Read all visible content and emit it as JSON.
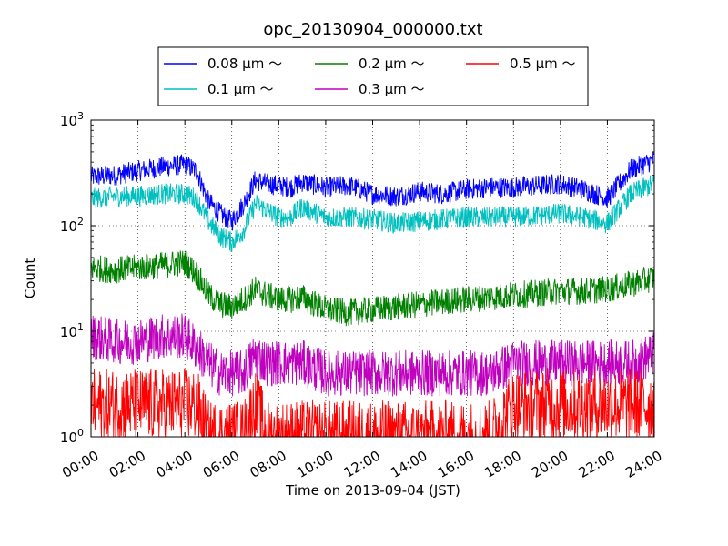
{
  "chart_data": {
    "type": "line",
    "title": "opc_20130904_000000.txt",
    "xlabel": "Time on 2013-09-04 (JST)",
    "ylabel": "Count",
    "yscale": "log",
    "xlim": [
      "00:00",
      "24:00"
    ],
    "ylim": [
      1,
      1000
    ],
    "grid": true,
    "legend_position": "top",
    "x_ticks": [
      "00:00",
      "02:00",
      "04:00",
      "06:00",
      "08:00",
      "10:00",
      "12:00",
      "14:00",
      "16:00",
      "18:00",
      "20:00",
      "22:00",
      "24:00"
    ],
    "y_ticks": [
      {
        "value": 1,
        "base": "10",
        "exp": "0"
      },
      {
        "value": 10,
        "base": "10",
        "exp": "1"
      },
      {
        "value": 100,
        "base": "10",
        "exp": "2"
      },
      {
        "value": 1000,
        "base": "10",
        "exp": "3"
      }
    ],
    "series": [
      {
        "name": "0.08 μm ～",
        "color": "#0000ff",
        "x": [
          "00:00",
          "01:00",
          "02:00",
          "03:00",
          "04:00",
          "04:30",
          "05:00",
          "05:30",
          "06:00",
          "06:30",
          "07:00",
          "07:30",
          "08:00",
          "08:30",
          "09:00",
          "10:00",
          "11:00",
          "12:00",
          "13:00",
          "14:00",
          "15:00",
          "16:00",
          "17:00",
          "18:00",
          "19:00",
          "20:00",
          "21:00",
          "22:00",
          "23:00",
          "24:00"
        ],
        "values": [
          290,
          300,
          330,
          360,
          380,
          330,
          170,
          130,
          110,
          160,
          270,
          250,
          240,
          230,
          260,
          230,
          240,
          200,
          190,
          210,
          200,
          220,
          230,
          230,
          240,
          250,
          220,
          180,
          340,
          420
        ]
      },
      {
        "name": "0.1 μm ～",
        "color": "#00bfbf",
        "x": [
          "00:00",
          "01:00",
          "02:00",
          "03:00",
          "04:00",
          "04:30",
          "05:00",
          "05:30",
          "06:00",
          "06:30",
          "07:00",
          "07:30",
          "08:00",
          "08:30",
          "09:00",
          "10:00",
          "11:00",
          "12:00",
          "13:00",
          "14:00",
          "15:00",
          "16:00",
          "17:00",
          "18:00",
          "19:00",
          "20:00",
          "21:00",
          "22:00",
          "23:00",
          "24:00"
        ],
        "values": [
          180,
          190,
          190,
          200,
          200,
          180,
          110,
          80,
          70,
          90,
          160,
          140,
          120,
          120,
          150,
          120,
          120,
          115,
          105,
          110,
          115,
          120,
          120,
          120,
          125,
          130,
          120,
          105,
          200,
          250
        ]
      },
      {
        "name": "0.2 μm ～",
        "color": "#008000",
        "x": [
          "00:00",
          "01:00",
          "02:00",
          "03:00",
          "04:00",
          "04:30",
          "05:00",
          "05:30",
          "06:00",
          "06:30",
          "07:00",
          "07:30",
          "08:00",
          "08:30",
          "09:00",
          "10:00",
          "11:00",
          "12:00",
          "13:00",
          "14:00",
          "15:00",
          "16:00",
          "17:00",
          "18:00",
          "19:00",
          "20:00",
          "21:00",
          "22:00",
          "23:00",
          "24:00"
        ],
        "values": [
          40,
          38,
          40,
          42,
          45,
          35,
          22,
          18,
          17,
          20,
          25,
          22,
          20,
          20,
          21,
          16,
          15,
          16,
          17,
          18,
          19,
          20,
          21,
          22,
          23,
          24,
          24,
          25,
          28,
          32
        ]
      },
      {
        "name": "0.3 μm ～",
        "color": "#bf00bf",
        "x": [
          "00:00",
          "01:00",
          "02:00",
          "03:00",
          "04:00",
          "04:30",
          "05:00",
          "05:30",
          "06:00",
          "06:30",
          "07:00",
          "07:30",
          "08:00",
          "08:30",
          "09:00",
          "10:00",
          "11:00",
          "12:00",
          "13:00",
          "14:00",
          "15:00",
          "16:00",
          "17:00",
          "18:00",
          "19:00",
          "20:00",
          "21:00",
          "22:00",
          "23:00",
          "24:00"
        ],
        "values": [
          9,
          8,
          8,
          9,
          9,
          7,
          5,
          4,
          4,
          4,
          6,
          5,
          5,
          5,
          5,
          4,
          4,
          4,
          4,
          4,
          4,
          4,
          4,
          5,
          5,
          5,
          5,
          5,
          5,
          6
        ]
      },
      {
        "name": "0.5 μm ～",
        "color": "#ff0000",
        "x": [
          "00:00",
          "01:00",
          "02:00",
          "03:00",
          "04:00",
          "04:30",
          "05:00",
          "05:30",
          "06:00",
          "06:30",
          "07:00",
          "07:30",
          "08:00",
          "08:30",
          "09:00",
          "10:00",
          "11:00",
          "12:00",
          "13:00",
          "14:00",
          "15:00",
          "16:00",
          "17:00",
          "18:00",
          "19:00",
          "20:00",
          "21:00",
          "22:00",
          "23:00",
          "24:00"
        ],
        "values": [
          2,
          2,
          2,
          2,
          2,
          2,
          1,
          1,
          1,
          1,
          2,
          1,
          1,
          1,
          1,
          1,
          1,
          1,
          1,
          1,
          1,
          1,
          1,
          2,
          2,
          2,
          2,
          2,
          2,
          2
        ]
      }
    ]
  }
}
